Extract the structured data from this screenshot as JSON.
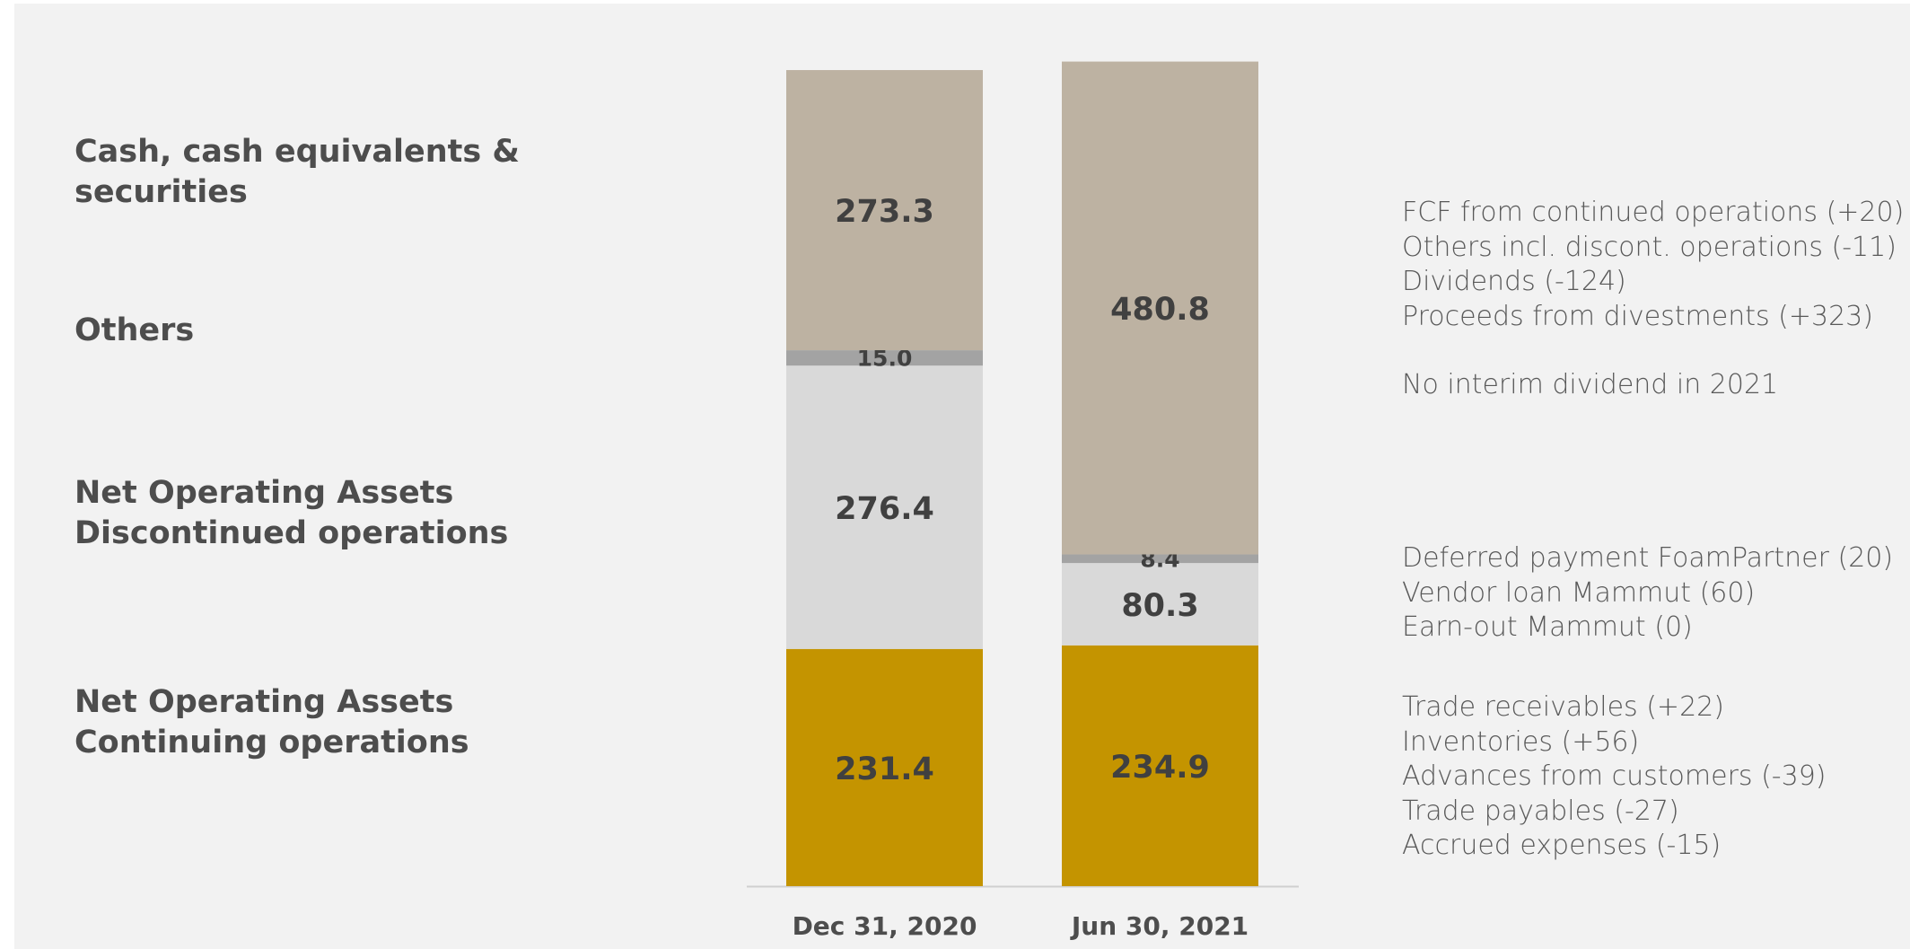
{
  "colors": {
    "background": "#f2f2f2",
    "cash": "#bdb2a2",
    "others": "#a3a3a3",
    "discontinued": "#d9d9d9",
    "continuing": "#c49400",
    "value_text": "#404040",
    "axis": "#d0d0d0"
  },
  "category_labels": [
    "Cash, cash equivalents & securities",
    "Others",
    "Net Operating Assets Discontinued operations",
    "Net Operating Assets Continuing operations"
  ],
  "notes": {
    "cash": [
      "FCF from continued operations (+20)",
      "Others incl. discont. operations (-11)",
      "Dividends (-124)",
      "Proceeds from divestments (+323)",
      "",
      "No interim dividend in 2021"
    ],
    "discontinued": [
      "Deferred payment FoamPartner (20)",
      "Vendor loan Mammut (60)",
      "Earn-out Mammut (0)"
    ],
    "continuing": [
      "Trade receivables (+22)",
      "Inventories (+56)",
      "Advances from customers (-39)",
      "Trade payables (-27)",
      "Accrued expenses (-15)"
    ]
  },
  "chart_data": {
    "type": "bar",
    "stacked": true,
    "categories": [
      "Dec 31, 2020",
      "Jun 30, 2021"
    ],
    "series": [
      {
        "key": "continuing",
        "values": [
          231.4,
          234.9
        ],
        "labels": [
          "231.4",
          "234.9"
        ]
      },
      {
        "key": "discontinued",
        "values": [
          276.4,
          80.3
        ],
        "labels": [
          "276.4",
          "80.3"
        ]
      },
      {
        "key": "others",
        "values": [
          15.0,
          8.4
        ],
        "labels": [
          "15.0",
          "8.4"
        ]
      },
      {
        "key": "cash",
        "values": [
          273.3,
          480.8
        ],
        "labels": [
          "273.3",
          "480.8"
        ]
      }
    ],
    "ylim": [
      0,
      808.4
    ],
    "grid": false
  }
}
